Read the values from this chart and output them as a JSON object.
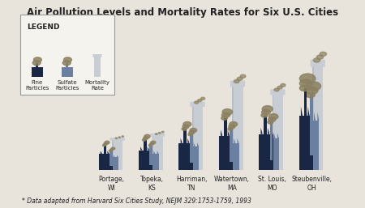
{
  "title": "Air Pollution Levels and Mortality Rates for Six U.S. Cities",
  "footnote": "* Data adapted from Harvard Six Cities Study, NEJM 329:1753-1759, 1993",
  "cities": [
    "Portage,\nWI",
    "Topeka,\nKS",
    "Harriman,\nTN",
    "Watertown,\nMA",
    "St. Louis,\nMO",
    "Steubenville,\nOH"
  ],
  "fine_particles": [
    0.18,
    0.22,
    0.3,
    0.38,
    0.4,
    0.6
  ],
  "sulfate_particles": [
    0.14,
    0.18,
    0.26,
    0.3,
    0.35,
    0.55
  ],
  "mortality_rate": [
    0.15,
    0.17,
    0.32,
    0.42,
    0.38,
    0.52
  ],
  "fine_color": "#1a2744",
  "sulfate_color": "#6b7fa0",
  "mortality_color": "#c8cdd4",
  "smoke_color": "#8b8060",
  "bg_color": "#e8e4dc",
  "legend_bg": "#f5f3ee",
  "text_color": "#222222"
}
